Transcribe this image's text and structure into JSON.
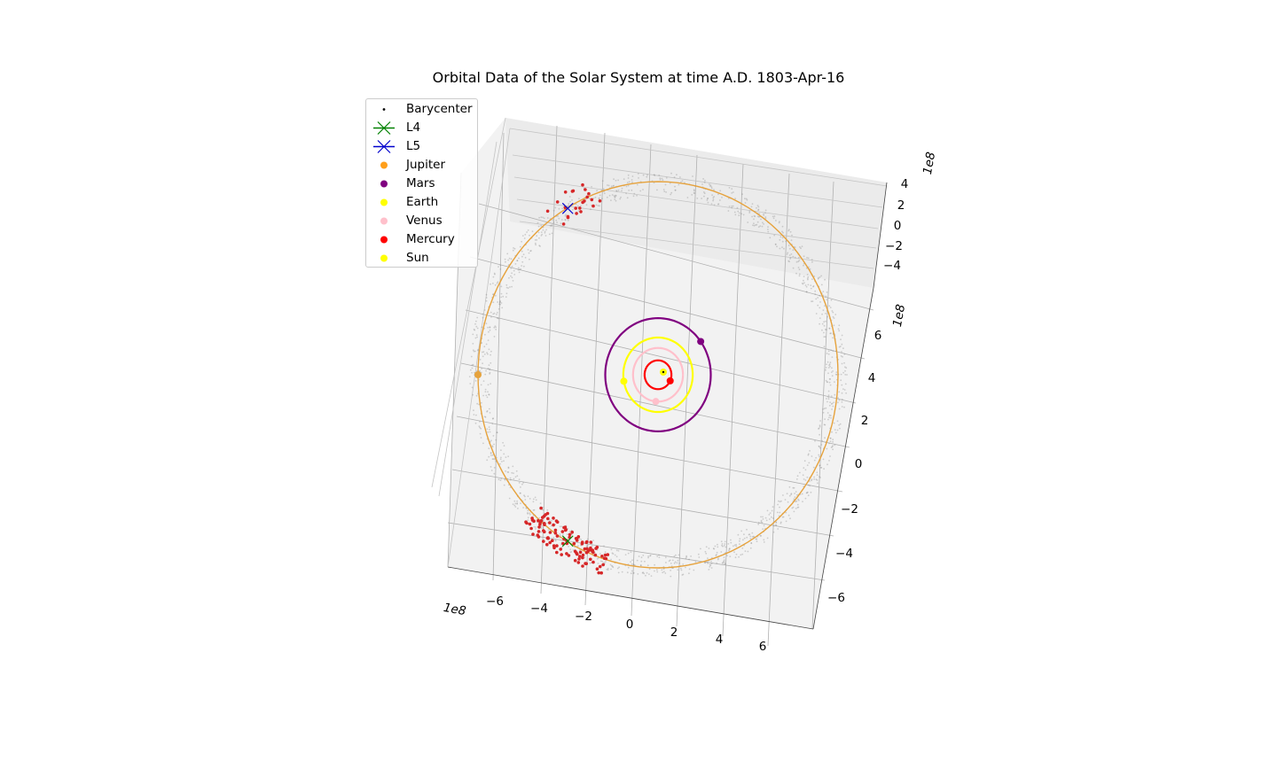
{
  "chart_data": {
    "type": "scatter",
    "projection": "3d",
    "title": "Orbital Data of the Solar System at time  A.D. 1803-Apr-16",
    "xlabel": "",
    "ylabel": "",
    "zlabel": "",
    "x_offset_label": "1e8",
    "y_offset_label": "1e8",
    "z_offset_label": "1e8",
    "x_ticks": [
      "−6",
      "−4",
      "−2",
      "0",
      "2",
      "4",
      "6"
    ],
    "y_ticks": [
      "−6",
      "−4",
      "−2",
      "0",
      "2",
      "4",
      "6"
    ],
    "z_ticks": [
      "−4",
      "−2",
      "0",
      "2",
      "4"
    ],
    "xlim": [
      -800000000.0,
      800000000.0
    ],
    "ylim": [
      -800000000.0,
      800000000.0
    ],
    "zlim": [
      -500000000.0,
      500000000.0
    ],
    "grid": true,
    "legend": {
      "placement": "upper-left",
      "entries": [
        {
          "label": "Barycenter",
          "color": "#000000",
          "marker": "point"
        },
        {
          "label": "L4",
          "color": "#008000",
          "marker": "x-line"
        },
        {
          "label": "L5",
          "color": "#0000cd",
          "marker": "x-line"
        },
        {
          "label": "Jupiter",
          "color": "#ff9f1a",
          "marker": "circle"
        },
        {
          "label": "Mars",
          "color": "#800080",
          "marker": "circle"
        },
        {
          "label": "Earth",
          "color": "#ffff00",
          "marker": "circle"
        },
        {
          "label": "Venus",
          "color": "#ffc0cb",
          "marker": "circle"
        },
        {
          "label": "Mercury",
          "color": "#ff0000",
          "marker": "circle"
        },
        {
          "label": "Sun",
          "color": "#ffff00",
          "marker": "circle"
        }
      ]
    },
    "orbits": [
      {
        "name": "Jupiter",
        "color": "#e6a23c",
        "radius": 778000000.0,
        "body_angle_deg": 180
      },
      {
        "name": "Mars",
        "color": "#800080",
        "radius": 228000000.0,
        "body_angle_deg": 36
      },
      {
        "name": "Earth",
        "color": "#ffff00",
        "radius": 150000000.0,
        "body_angle_deg": 190
      },
      {
        "name": "Venus",
        "color": "#ffc0cb",
        "radius": 108000000.0,
        "body_angle_deg": 265
      },
      {
        "name": "Mercury",
        "color": "#ff0000",
        "radius": 58000000.0,
        "body_angle_deg": 335
      }
    ],
    "points": [
      {
        "name": "Sun",
        "x": 0,
        "y": 0,
        "z": 0,
        "color": "#ffff00"
      },
      {
        "name": "Barycenter",
        "x": 0,
        "y": 0,
        "z": 0,
        "color": "#000000"
      },
      {
        "name": "L4",
        "x": -390000000.0,
        "y": -670000000.0,
        "z": 0,
        "color": "#008000"
      },
      {
        "name": "L5",
        "x": -390000000.0,
        "y": 670000000.0,
        "z": 0,
        "color": "#0000cd"
      }
    ],
    "trojan_groups": [
      {
        "name": "L4 Trojans",
        "color": "#d62728",
        "count": 110
      },
      {
        "name": "L5 Trojans",
        "color": "#d62728",
        "count": 22
      }
    ],
    "asteroid_belt": {
      "color": "#888888",
      "description_visible": false
    }
  }
}
